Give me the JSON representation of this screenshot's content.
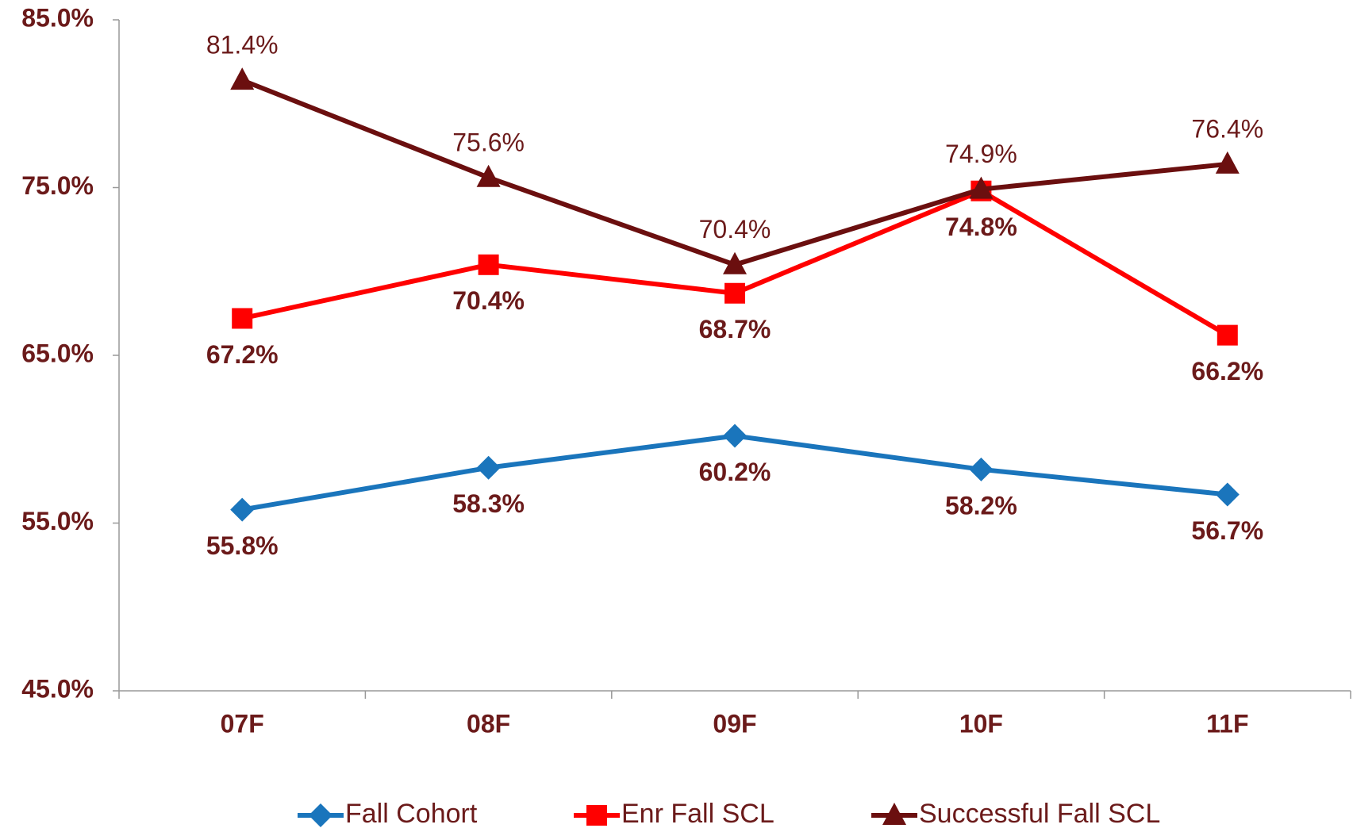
{
  "chart_data": {
    "type": "line",
    "categories": [
      "07F",
      "08F",
      "09F",
      "10F",
      "11F"
    ],
    "ylim": [
      45,
      85
    ],
    "yticks": [
      {
        "value": 45,
        "label": "45.0%"
      },
      {
        "value": 55,
        "label": "55.0%"
      },
      {
        "value": 65,
        "label": "65.0%"
      },
      {
        "value": 75,
        "label": "75.0%"
      },
      {
        "value": 85,
        "label": "85.0%"
      }
    ],
    "legend": "bottom",
    "series": [
      {
        "name": "Fall Cohort",
        "color": "#1a75bc",
        "marker": "diamond",
        "label_position": "below",
        "values": [
          55.8,
          58.3,
          60.2,
          58.2,
          56.7
        ],
        "value_labels": [
          "55.8%",
          "58.3%",
          "60.2%",
          "58.2%",
          "56.7%"
        ]
      },
      {
        "name": "Enr Fall SCL",
        "color": "#ff0000",
        "marker": "square",
        "label_position": "below",
        "values": [
          67.2,
          70.4,
          68.7,
          74.8,
          66.2
        ],
        "value_labels": [
          "67.2%",
          "70.4%",
          "68.7%",
          "74.8%",
          "66.2%"
        ]
      },
      {
        "name": "Successful Fall SCL",
        "color": "#6b0f0f",
        "marker": "triangle",
        "label_position": "above",
        "values": [
          81.4,
          75.6,
          70.4,
          74.9,
          76.4
        ],
        "value_labels": [
          "81.4%",
          "75.6%",
          "70.4%",
          "74.9%",
          "76.4%"
        ]
      }
    ]
  }
}
